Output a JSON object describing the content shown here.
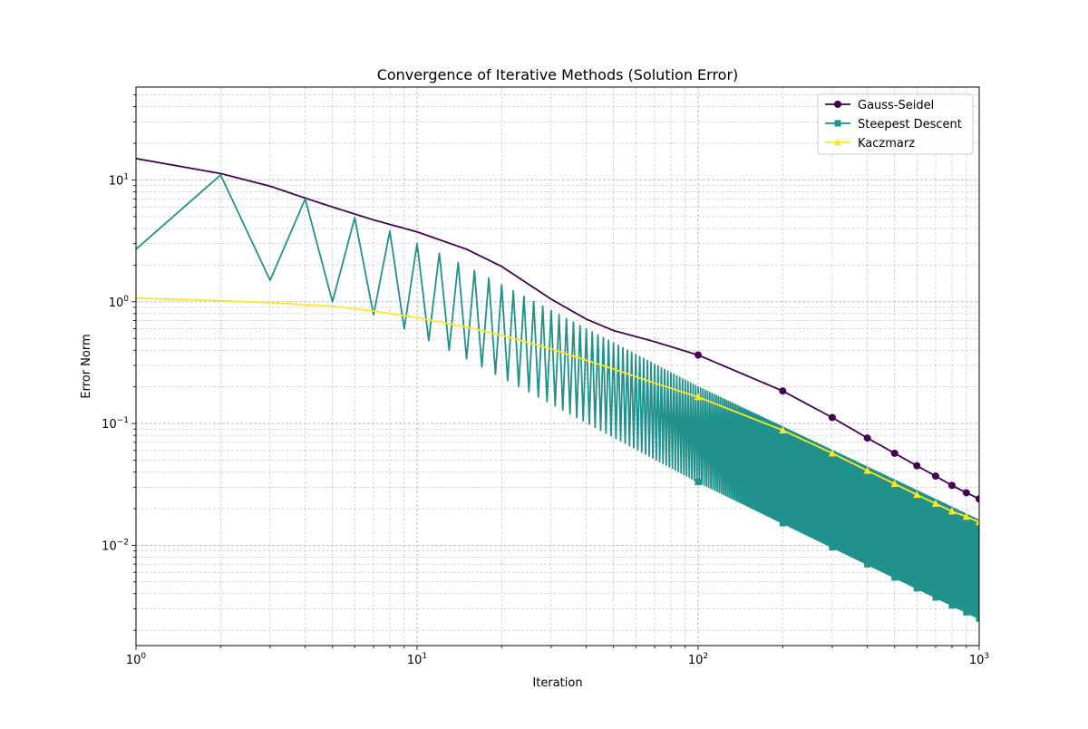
{
  "chart_data": {
    "type": "line",
    "title": "Convergence of Iterative Methods (Solution Error)",
    "xlabel": "Iteration",
    "ylabel": "Error Norm",
    "xscale": "log",
    "yscale": "log",
    "xlim": [
      1,
      1000
    ],
    "ylim": [
      0.0015,
      58
    ],
    "grid": true,
    "grid_minor": true,
    "legend_position": "top-right",
    "x_tick_labels": [
      {
        "base": "10",
        "exp": "0",
        "value": 1
      },
      {
        "base": "10",
        "exp": "1",
        "value": 10
      },
      {
        "base": "10",
        "exp": "2",
        "value": 100
      },
      {
        "base": "10",
        "exp": "3",
        "value": 1000
      }
    ],
    "y_tick_labels": [
      {
        "base": "10",
        "exp": "−2",
        "value": 0.01
      },
      {
        "base": "10",
        "exp": "−1",
        "value": 0.1
      },
      {
        "base": "10",
        "exp": "0",
        "value": 1
      },
      {
        "base": "10",
        "exp": "1",
        "value": 10
      }
    ],
    "series": [
      {
        "name": "Gauss-Seidel",
        "color": "#440154",
        "marker": "circle",
        "style": "smooth",
        "x": [
          1,
          2,
          3,
          4,
          5,
          7,
          10,
          15,
          20,
          30,
          40,
          50,
          70,
          100,
          200,
          300,
          400,
          500,
          600,
          700,
          800,
          900,
          1000
        ],
        "y": [
          15,
          11.3,
          8.9,
          7.1,
          6.0,
          4.7,
          3.75,
          2.7,
          1.95,
          1.05,
          0.72,
          0.58,
          0.47,
          0.365,
          0.185,
          0.112,
          0.076,
          0.057,
          0.045,
          0.037,
          0.031,
          0.027,
          0.024
        ],
        "marker_x": [
          100,
          200,
          300,
          400,
          500,
          600,
          700,
          800,
          900,
          1000
        ]
      },
      {
        "name": "Steepest Descent",
        "color": "#21918c",
        "marker": "square",
        "style": "zigzag",
        "peaks": {
          "x": [
            2,
            4,
            6,
            8,
            10,
            12,
            14,
            16,
            100,
            1000
          ],
          "y": [
            11,
            7,
            4.9,
            3.8,
            3.0,
            2.5,
            2.1,
            1.8,
            0.2,
            0.016
          ]
        },
        "troughs": {
          "x": [
            1,
            3,
            5,
            7,
            9,
            11,
            13,
            15,
            100,
            1000
          ],
          "y": [
            2.7,
            1.5,
            1.0,
            0.78,
            0.6,
            0.48,
            0.4,
            0.34,
            0.033,
            0.0025
          ]
        },
        "marker_x": [
          100,
          200,
          300,
          400,
          500,
          600,
          700,
          800,
          900,
          1000
        ]
      },
      {
        "name": "Kaczmarz",
        "color": "#fde725",
        "marker": "triangle",
        "style": "smooth",
        "x": [
          1,
          2,
          3,
          5,
          7,
          10,
          15,
          20,
          30,
          50,
          70,
          100,
          200,
          300,
          400,
          500,
          600,
          700,
          800,
          900,
          1000
        ],
        "y": [
          1.07,
          1.02,
          0.98,
          0.92,
          0.84,
          0.74,
          0.62,
          0.53,
          0.41,
          0.28,
          0.215,
          0.165,
          0.088,
          0.057,
          0.041,
          0.032,
          0.026,
          0.022,
          0.019,
          0.0172,
          0.0155
        ],
        "marker_x": [
          100,
          200,
          300,
          400,
          500,
          600,
          700,
          800,
          900,
          1000
        ]
      }
    ]
  }
}
